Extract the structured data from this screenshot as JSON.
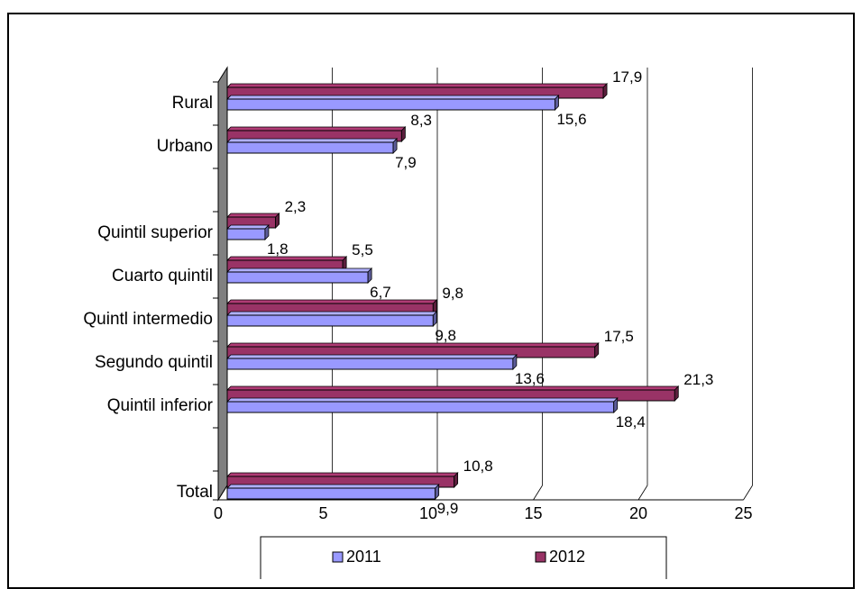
{
  "chart_data": {
    "type": "bar",
    "orientation": "horizontal",
    "style": "3d",
    "categories": [
      "Rural",
      "Urbano",
      "",
      "Quintil superior",
      "Cuarto quintil",
      "Quintl intermedio",
      "Segundo quintil",
      "Quintil inferior",
      "",
      "Total"
    ],
    "series": [
      {
        "name": "2011",
        "color": "#9999ff",
        "values": [
          15.6,
          7.9,
          null,
          1.8,
          6.7,
          9.8,
          13.6,
          18.4,
          null,
          9.9
        ],
        "labels": [
          "15,6",
          "7,9",
          "",
          "1,8",
          "6,7",
          "9,8",
          "13,6",
          "18,4",
          "",
          "9,9"
        ]
      },
      {
        "name": "2012",
        "color": "#993366",
        "values": [
          17.9,
          8.3,
          null,
          2.3,
          5.5,
          9.8,
          17.5,
          21.3,
          null,
          10.8
        ],
        "labels": [
          "17,9",
          "8,3",
          "",
          "2,3",
          "5,5",
          "9,8",
          "17,5",
          "21,3",
          "",
          "10,8"
        ]
      }
    ],
    "xlim": [
      0,
      25
    ],
    "xticks": [
      "0",
      "5",
      "10",
      "15",
      "20",
      "25"
    ],
    "grid": true,
    "legend_position": "bottom"
  }
}
